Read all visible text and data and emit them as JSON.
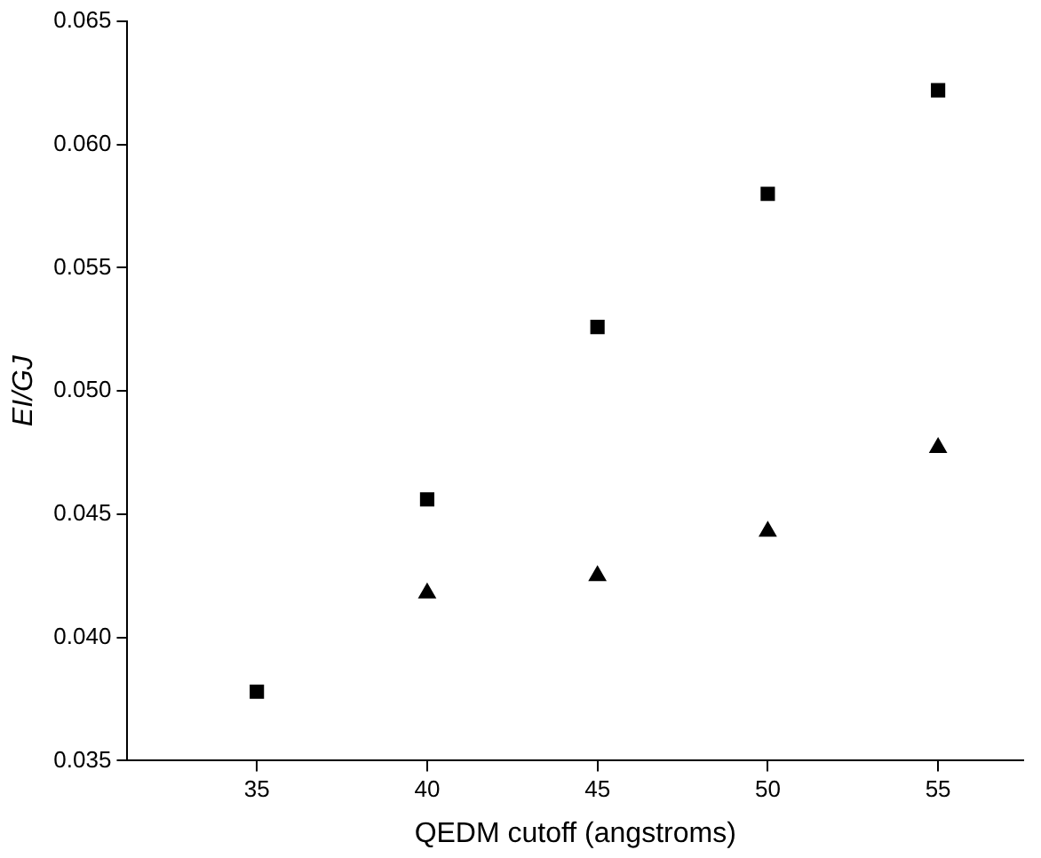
{
  "chart_data": {
    "type": "scatter",
    "xlabel": "QEDM cutoff (angstroms)",
    "ylabel": "EI/GJ",
    "xlim": [
      31.2,
      57.5
    ],
    "xticks": [
      35,
      40,
      45,
      50,
      55
    ],
    "ylim": [
      0.035,
      0.065
    ],
    "yticks": [
      {
        "value": 0.035,
        "label": "0.035"
      },
      {
        "value": 0.04,
        "label": "0.040"
      },
      {
        "value": 0.045,
        "label": "0.045"
      },
      {
        "value": 0.05,
        "label": "0.050"
      },
      {
        "value": 0.055,
        "label": "0.055"
      },
      {
        "value": 0.06,
        "label": "0.060"
      },
      {
        "value": 0.065,
        "label": "0.065"
      }
    ],
    "grid": false,
    "legend": false,
    "series": [
      {
        "color": "#000000",
        "marker": "square",
        "x": [
          35,
          40,
          45,
          50,
          55
        ],
        "values": [
          0.0378,
          0.0456,
          0.0526,
          0.058,
          0.0622
        ]
      },
      {
        "color": "#000000",
        "marker": "triangle",
        "x": [
          40,
          45,
          50,
          55
        ],
        "values": [
          0.0418,
          0.0425,
          0.0443,
          0.0477
        ]
      }
    ]
  }
}
